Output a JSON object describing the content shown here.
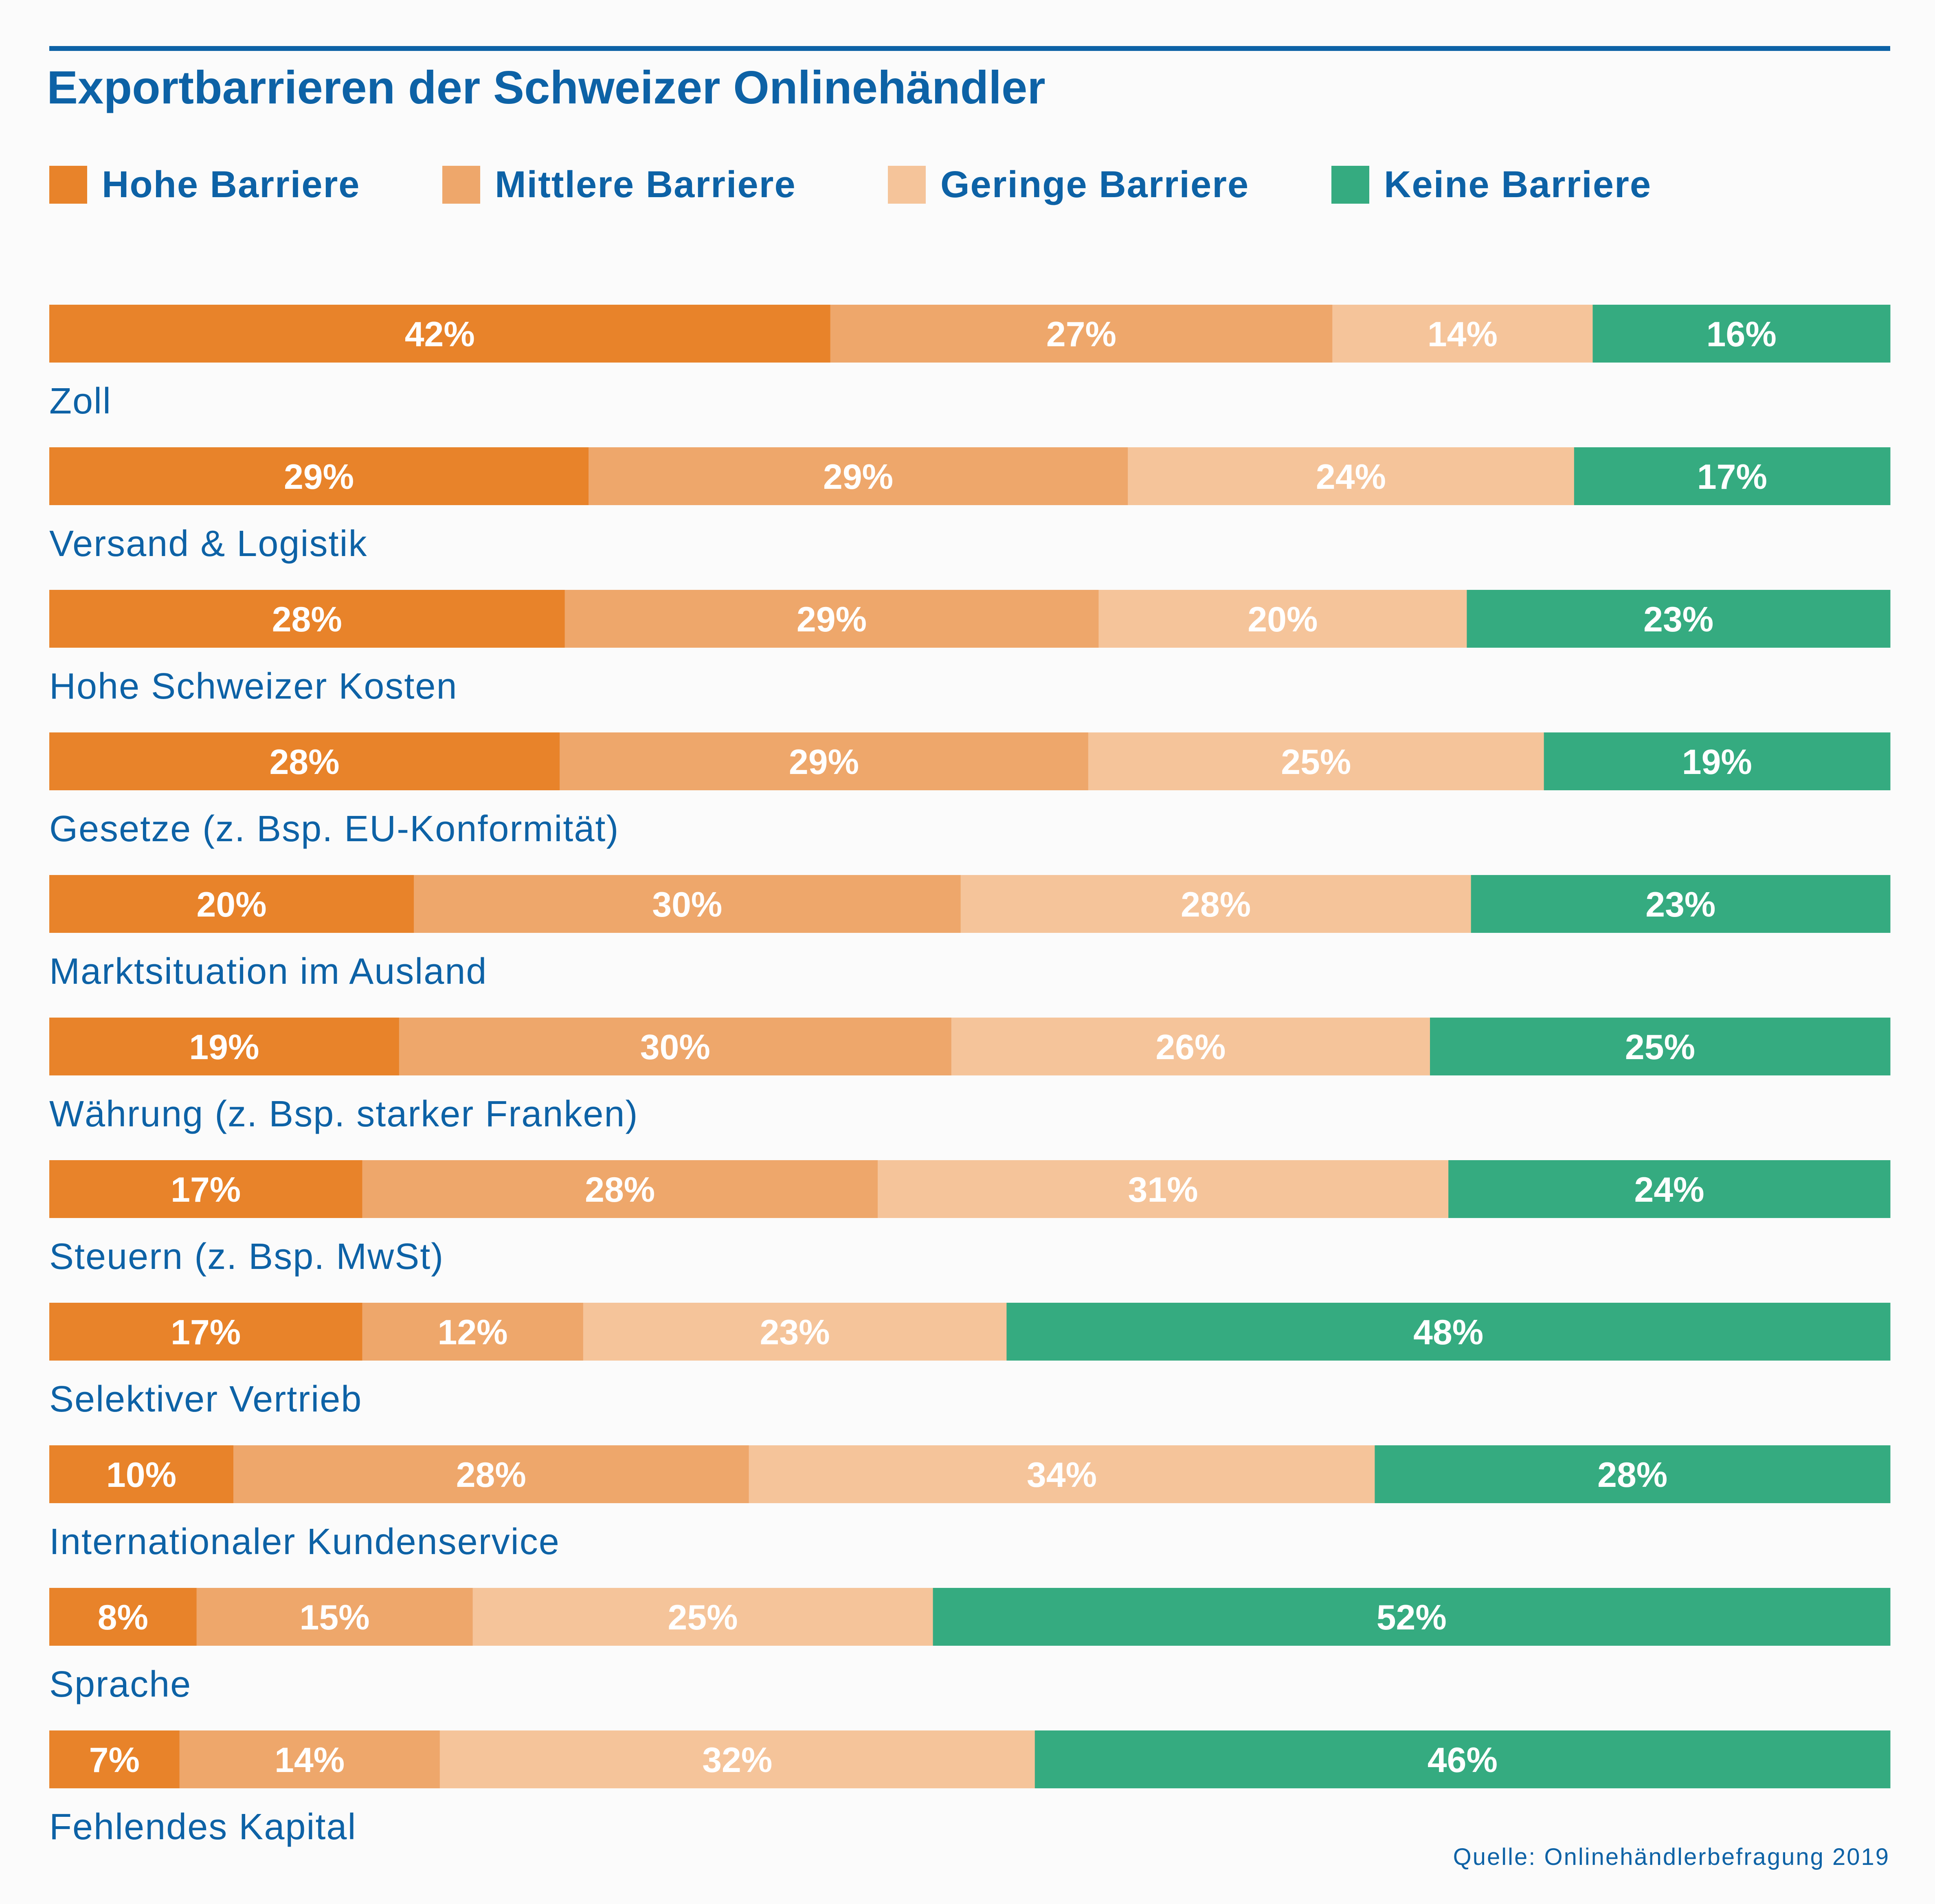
{
  "title": "Exportbarrieren der Schweizer Onlinehändler",
  "source": "Quelle: Onlinehändlerbefragung 2019",
  "colors": {
    "accent": "#0d62a6",
    "value_label": "#ffffff"
  },
  "chart_data": {
    "type": "bar",
    "orientation": "horizontal",
    "stacked": true,
    "value_unit": "%",
    "legend_position": "top-left",
    "categories": [
      "Zoll",
      "Versand & Logistik",
      "Hohe Schweizer Kosten",
      "Gesetze (z. Bsp. EU-Konformität)",
      "Marktsituation im Ausland",
      "Währung (z. Bsp. starker Franken)",
      "Steuern (z. Bsp. MwSt)",
      "Selektiver Vertrieb",
      "Internationaler Kundenservice",
      "Sprache",
      "Fehlendes Kapital"
    ],
    "series": [
      {
        "name": "Hohe Barriere",
        "color": "#e8832a",
        "values": [
          42,
          29,
          28,
          28,
          20,
          19,
          17,
          17,
          10,
          8,
          7
        ]
      },
      {
        "name": "Mittlere Barriere",
        "color": "#eea76b",
        "values": [
          27,
          29,
          29,
          29,
          30,
          30,
          28,
          12,
          28,
          15,
          14
        ]
      },
      {
        "name": "Geringe Barriere",
        "color": "#f5c49a",
        "values": [
          14,
          24,
          20,
          25,
          28,
          26,
          31,
          23,
          34,
          25,
          32
        ]
      },
      {
        "name": "Keine Barriere",
        "color": "#35ab80",
        "values": [
          16,
          17,
          23,
          19,
          23,
          25,
          24,
          48,
          28,
          52,
          46
        ]
      }
    ]
  }
}
